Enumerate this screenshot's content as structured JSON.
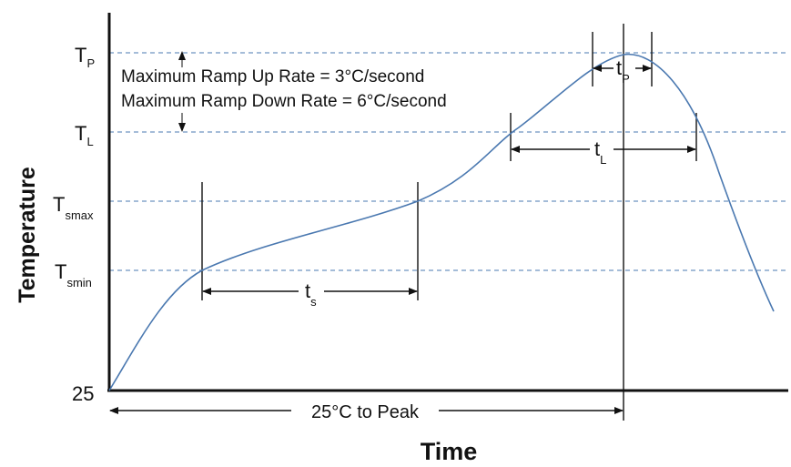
{
  "axes": {
    "x_title": "Time",
    "y_title": "Temperature",
    "y_origin_label": "25"
  },
  "levels": {
    "tp": {
      "main": "T",
      "sub": "P"
    },
    "tl": {
      "main": "T",
      "sub": "L"
    },
    "tsmax": {
      "main": "T",
      "sub": "smax"
    },
    "tsmin": {
      "main": "T",
      "sub": "smin"
    }
  },
  "annotations": {
    "ramp_up": "Maximum Ramp Up Rate = 3°C/second",
    "ramp_down": "Maximum Ramp Down Rate = 6°C/second",
    "to_peak": "25°C to Peak"
  },
  "durations": {
    "ts": {
      "main": "t",
      "sub": "s"
    },
    "tl": {
      "main": "t",
      "sub": "L"
    },
    "tp": {
      "main": "t",
      "sub": "P"
    }
  },
  "colors": {
    "curve": "#4a78b0",
    "guide": "#4a78b0",
    "ink": "#111111",
    "background": "#ffffff"
  }
}
